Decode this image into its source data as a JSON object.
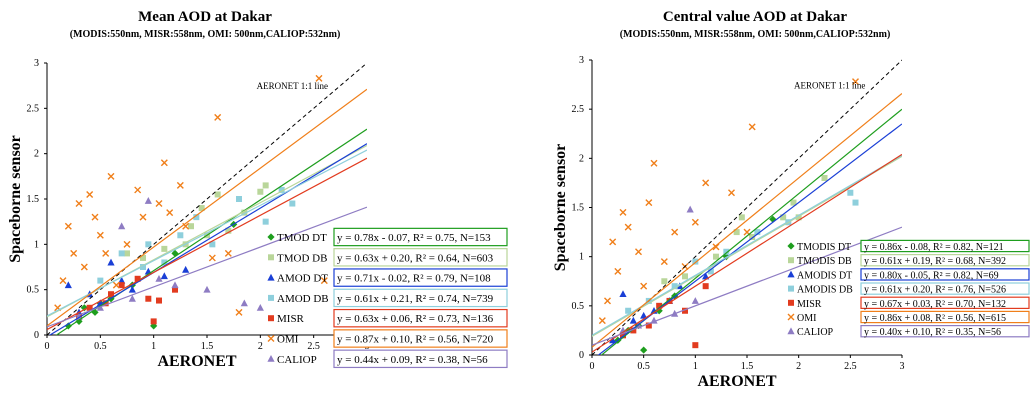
{
  "chart_data": [
    {
      "type": "scatter",
      "title": "Mean AOD at Dakar",
      "subtitle": "(MODIS:550nm, MISR:558nm, OMI: 500nm,CALIOP:532nm)",
      "xlabel": "AERONET",
      "ylabel": "Spaceborne sensor",
      "xlim": [
        0,
        3
      ],
      "ylim": [
        0,
        3
      ],
      "xticks": [
        "0",
        "0.5",
        "1",
        "1.5",
        "2",
        "2.5",
        "3"
      ],
      "yticks": [
        "0",
        "0.5",
        "1",
        "1.5",
        "2",
        "2.5",
        "3"
      ],
      "grid": false,
      "legend_position": "bottom-right",
      "one_to_one_label": "AERONET 1:1 line",
      "series": [
        {
          "name": "TMOD DT",
          "color": "#1e9e1e",
          "marker": "diamond",
          "fit": {
            "slope": 0.78,
            "intercept": -0.07
          },
          "equation": "y = 0.78x - 0.07, R² = 0.75, N=153",
          "points": [
            [
              0.2,
              0.1
            ],
            [
              0.3,
              0.15
            ],
            [
              0.45,
              0.25
            ],
            [
              0.5,
              0.35
            ],
            [
              0.6,
              0.4
            ],
            [
              1.0,
              0.1
            ],
            [
              1.2,
              0.9
            ],
            [
              1.75,
              1.22
            ],
            [
              0.8,
              0.55
            ],
            [
              0.35,
              0.3
            ]
          ]
        },
        {
          "name": "TMOD DB",
          "color": "#b9d69a",
          "marker": "square",
          "fit": {
            "slope": 0.63,
            "intercept": 0.2
          },
          "equation": "y = 0.63x + 0.20, R² = 0.64, N=603",
          "points": [
            [
              1.45,
              1.4
            ],
            [
              1.6,
              1.55
            ],
            [
              2.0,
              1.58
            ],
            [
              1.3,
              1.0
            ],
            [
              1.1,
              0.95
            ],
            [
              0.9,
              0.85
            ],
            [
              1.7,
              1.15
            ],
            [
              2.05,
              1.65
            ],
            [
              0.75,
              0.9
            ],
            [
              1.35,
              1.2
            ],
            [
              1.5,
              1.1
            ],
            [
              1.85,
              1.35
            ]
          ]
        },
        {
          "name": "AMOD DT",
          "color": "#1a3fd6",
          "marker": "triangle",
          "fit": {
            "slope": 0.71,
            "intercept": -0.02
          },
          "equation": "y = 0.71x - 0.02, R² = 0.79, N=108",
          "points": [
            [
              0.3,
              0.25
            ],
            [
              0.5,
              0.35
            ],
            [
              0.7,
              0.6
            ],
            [
              0.95,
              0.7
            ],
            [
              1.3,
              0.72
            ],
            [
              0.6,
              0.8
            ],
            [
              0.4,
              0.45
            ],
            [
              0.2,
              0.55
            ],
            [
              0.8,
              0.5
            ],
            [
              1.1,
              0.65
            ]
          ]
        },
        {
          "name": "AMOD DB",
          "color": "#8ecfdc",
          "marker": "square",
          "fit": {
            "slope": 0.61,
            "intercept": 0.21
          },
          "equation": "y = 0.61x + 0.21, R² = 0.74, N=739",
          "points": [
            [
              2.2,
              1.6
            ],
            [
              2.05,
              1.25
            ],
            [
              0.95,
              1.0
            ],
            [
              1.25,
              1.1
            ],
            [
              1.55,
              1.0
            ],
            [
              0.9,
              0.75
            ],
            [
              1.8,
              1.5
            ],
            [
              0.7,
              0.9
            ],
            [
              0.5,
              0.6
            ],
            [
              1.1,
              0.8
            ],
            [
              1.4,
              1.3
            ],
            [
              2.3,
              1.45
            ]
          ]
        },
        {
          "name": "MISR",
          "color": "#e23b1f",
          "marker": "square",
          "fit": {
            "slope": 0.63,
            "intercept": 0.06
          },
          "equation": "y = 0.63x + 0.06, R² = 0.73, N=136",
          "points": [
            [
              0.7,
              0.55
            ],
            [
              0.95,
              0.4
            ],
            [
              1.0,
              0.15
            ],
            [
              1.05,
              0.38
            ],
            [
              0.85,
              0.62
            ],
            [
              0.55,
              0.35
            ],
            [
              0.4,
              0.3
            ],
            [
              0.3,
              0.2
            ],
            [
              1.2,
              0.5
            ],
            [
              0.6,
              0.45
            ]
          ]
        },
        {
          "name": "OMI",
          "color": "#f07f1a",
          "marker": "x",
          "fit": {
            "slope": 0.87,
            "intercept": 0.1
          },
          "equation": "y = 0.87x + 0.10, R² = 0.56, N=720",
          "points": [
            [
              2.55,
              2.83
            ],
            [
              1.6,
              2.4
            ],
            [
              1.1,
              1.9
            ],
            [
              0.4,
              1.55
            ],
            [
              0.3,
              1.45
            ],
            [
              0.45,
              1.3
            ],
            [
              0.6,
              1.75
            ],
            [
              0.85,
              1.6
            ],
            [
              1.25,
              1.65
            ],
            [
              0.2,
              1.2
            ],
            [
              0.5,
              1.1
            ],
            [
              0.75,
              1.0
            ],
            [
              0.25,
              0.9
            ],
            [
              0.35,
              0.75
            ],
            [
              0.15,
              0.6
            ],
            [
              0.9,
              1.3
            ],
            [
              1.05,
              1.45
            ],
            [
              1.3,
              1.2
            ],
            [
              1.55,
              0.85
            ],
            [
              1.7,
              0.9
            ],
            [
              0.65,
              0.55
            ],
            [
              0.1,
              0.3
            ],
            [
              1.8,
              0.25
            ],
            [
              2.6,
              0.6
            ],
            [
              0.55,
              0.9
            ],
            [
              1.15,
              1.35
            ]
          ]
        },
        {
          "name": "CALIOP",
          "color": "#8e7cc3",
          "marker": "triangle",
          "fit": {
            "slope": 0.44,
            "intercept": 0.09
          },
          "equation": "y = 0.44x + 0.09, R² = 0.38, N=56",
          "points": [
            [
              0.95,
              1.48
            ],
            [
              0.7,
              1.2
            ],
            [
              1.2,
              0.55
            ],
            [
              1.5,
              0.5
            ],
            [
              1.85,
              0.35
            ],
            [
              2.0,
              0.3
            ],
            [
              0.5,
              0.3
            ],
            [
              0.8,
              0.4
            ],
            [
              0.3,
              0.2
            ],
            [
              1.05,
              0.62
            ]
          ]
        }
      ]
    },
    {
      "type": "scatter",
      "title": "Central value AOD at Dakar",
      "subtitle": "(MODIS:550nm, MISR:558nm, OMI: 500nm,CALIOP:532nm)",
      "xlabel": "AERONET",
      "ylabel": "Spaceborne sensor",
      "xlim": [
        0,
        3
      ],
      "ylim": [
        0,
        3
      ],
      "xticks": [
        "0",
        "0.5",
        "1",
        "1.5",
        "2",
        "2.5",
        "3"
      ],
      "yticks": [
        "0",
        "0.5",
        "1",
        "1.5",
        "2",
        "2.5",
        "3"
      ],
      "grid": false,
      "legend_position": "bottom-right",
      "one_to_one_label": "AERONET 1:1 line",
      "series": [
        {
          "name": "TMODIS DT",
          "color": "#1e9e1e",
          "marker": "diamond",
          "fit": {
            "slope": 0.86,
            "intercept": -0.08
          },
          "equation": "y = 0.86x - 0.08, R² = 0.82, N=121",
          "points": [
            [
              0.5,
              0.05
            ],
            [
              1.75,
              1.38
            ],
            [
              0.35,
              0.25
            ],
            [
              0.8,
              0.6
            ],
            [
              0.45,
              0.3
            ],
            [
              0.25,
              0.15
            ],
            [
              1.3,
              1.0
            ],
            [
              0.65,
              0.45
            ]
          ]
        },
        {
          "name": "TMODIS DB",
          "color": "#b9d69a",
          "marker": "square",
          "fit": {
            "slope": 0.61,
            "intercept": 0.19
          },
          "equation": "y = 0.61x + 0.19, R² = 0.68, N=392",
          "points": [
            [
              2.25,
              1.8
            ],
            [
              1.45,
              1.4
            ],
            [
              1.85,
              1.4
            ],
            [
              1.2,
              1.0
            ],
            [
              1.55,
              1.2
            ],
            [
              0.9,
              0.8
            ],
            [
              1.95,
              1.55
            ],
            [
              2.0,
              1.4
            ],
            [
              0.7,
              0.75
            ],
            [
              1.4,
              1.25
            ]
          ]
        },
        {
          "name": "AMODIS DT",
          "color": "#1a3fd6",
          "marker": "triangle",
          "fit": {
            "slope": 0.8,
            "intercept": -0.05
          },
          "equation": "y = 0.80x - 0.05, R² = 0.82, N=69",
          "points": [
            [
              0.3,
              0.62
            ],
            [
              0.5,
              0.4
            ],
            [
              0.85,
              0.7
            ],
            [
              1.1,
              0.8
            ],
            [
              0.2,
              0.15
            ],
            [
              0.6,
              0.45
            ],
            [
              0.4,
              0.35
            ],
            [
              0.75,
              0.55
            ]
          ]
        },
        {
          "name": "AMODIS DB",
          "color": "#8ecfdc",
          "marker": "square",
          "fit": {
            "slope": 0.61,
            "intercept": 0.2
          },
          "equation": "y = 0.61x + 0.20, R² = 0.76, N=526",
          "points": [
            [
              2.5,
              1.65
            ],
            [
              2.55,
              1.55
            ],
            [
              1.6,
              1.25
            ],
            [
              1.0,
              0.95
            ],
            [
              1.3,
              1.05
            ],
            [
              0.8,
              0.7
            ],
            [
              1.9,
              1.35
            ],
            [
              0.55,
              0.55
            ],
            [
              1.15,
              0.85
            ],
            [
              0.35,
              0.45
            ]
          ]
        },
        {
          "name": "MISR",
          "color": "#e23b1f",
          "marker": "square",
          "fit": {
            "slope": 0.67,
            "intercept": 0.03
          },
          "equation": "y = 0.67x + 0.03, R² = 0.70, N=132",
          "points": [
            [
              1.0,
              0.1
            ],
            [
              0.75,
              0.55
            ],
            [
              0.9,
              0.45
            ],
            [
              0.55,
              0.3
            ],
            [
              0.4,
              0.25
            ],
            [
              1.1,
              0.7
            ],
            [
              0.65,
              0.5
            ],
            [
              0.3,
              0.2
            ]
          ]
        },
        {
          "name": "OMI",
          "color": "#f07f1a",
          "marker": "x",
          "fit": {
            "slope": 0.86,
            "intercept": 0.08
          },
          "equation": "y = 0.86x + 0.08, R² = 0.56, N=615",
          "points": [
            [
              2.55,
              2.78
            ],
            [
              1.55,
              2.32
            ],
            [
              1.1,
              1.75
            ],
            [
              1.35,
              1.65
            ],
            [
              0.3,
              1.45
            ],
            [
              0.55,
              1.55
            ],
            [
              0.6,
              1.95
            ],
            [
              1.0,
              1.35
            ],
            [
              0.8,
              1.25
            ],
            [
              0.2,
              1.15
            ],
            [
              0.45,
              1.05
            ],
            [
              0.25,
              0.85
            ],
            [
              0.7,
              0.95
            ],
            [
              0.15,
              0.55
            ],
            [
              1.2,
              1.1
            ],
            [
              0.35,
              1.3
            ],
            [
              1.5,
              1.25
            ],
            [
              0.9,
              0.9
            ],
            [
              0.5,
              0.7
            ],
            [
              0.1,
              0.35
            ]
          ]
        },
        {
          "name": "CALIOP",
          "color": "#8e7cc3",
          "marker": "triangle",
          "fit": {
            "slope": 0.4,
            "intercept": 0.1
          },
          "equation": "y = 0.40x + 0.10, R² = 0.35, N=56",
          "points": [
            [
              0.95,
              1.48
            ],
            [
              0.3,
              0.25
            ],
            [
              0.6,
              0.35
            ],
            [
              0.8,
              0.42
            ],
            [
              1.0,
              0.55
            ],
            [
              0.45,
              0.3
            ]
          ]
        }
      ]
    }
  ]
}
